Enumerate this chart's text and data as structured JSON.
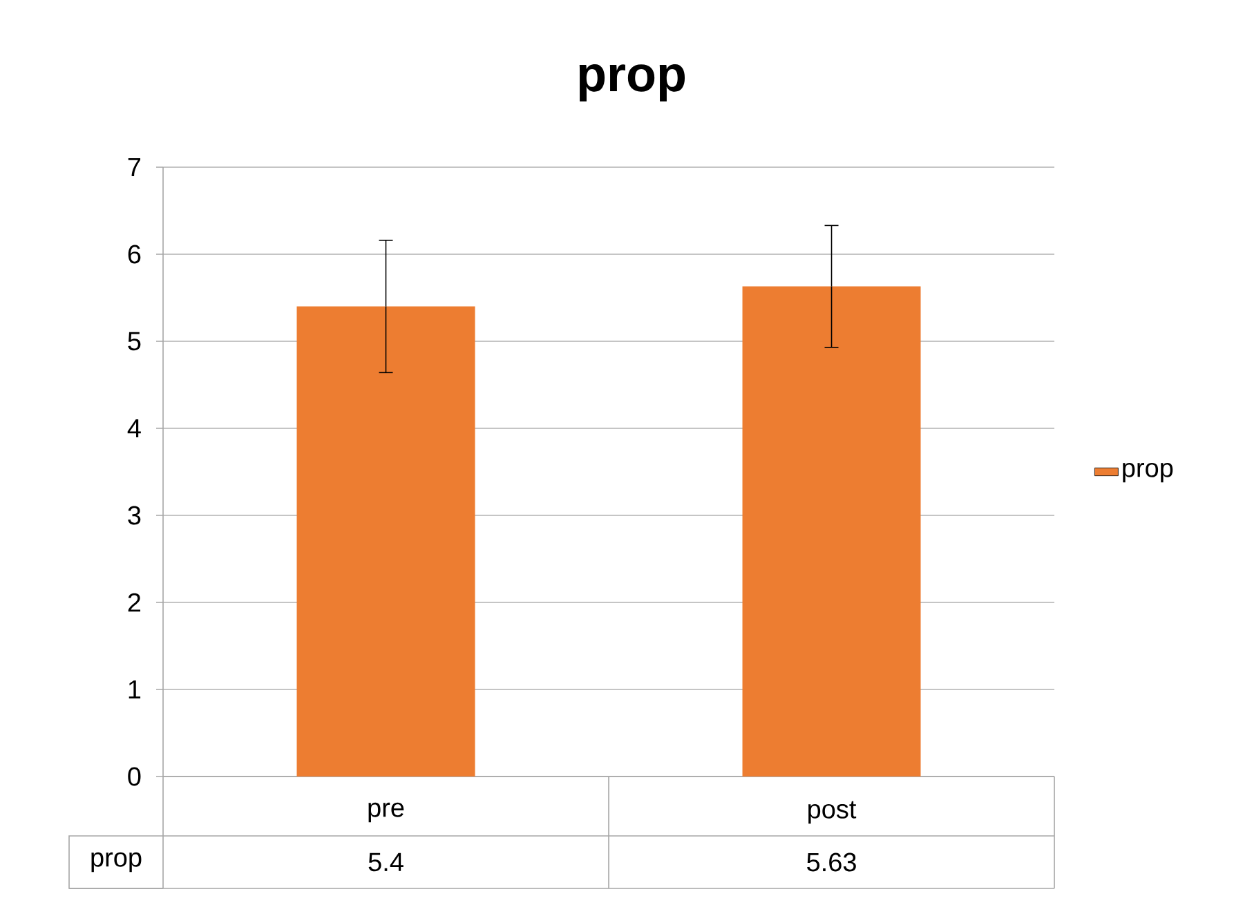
{
  "chart_data": {
    "type": "bar",
    "title": "prop",
    "categories": [
      "pre",
      "post"
    ],
    "series": [
      {
        "name": "prop",
        "color": "#ed7d31",
        "values": [
          5.4,
          5.63
        ],
        "errors": [
          0.76,
          0.7
        ]
      }
    ],
    "ylim": [
      0,
      7
    ],
    "yticks": [
      0,
      1,
      2,
      3,
      4,
      5,
      6,
      7
    ],
    "grid": "y",
    "legend": "right",
    "data_labels": true
  }
}
